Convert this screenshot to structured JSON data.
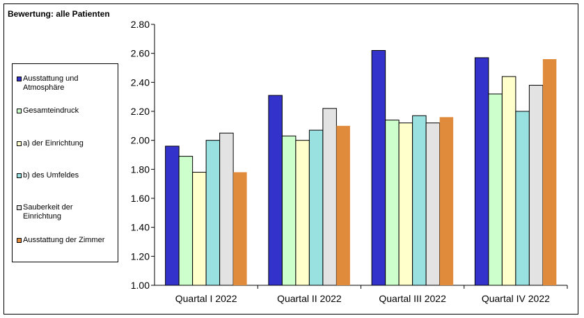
{
  "chart_data": {
    "type": "bar",
    "title": "Bewertung: alle Patienten",
    "xlabel": "",
    "ylabel": "",
    "ylim": [
      1.0,
      2.8
    ],
    "yticks": [
      "1.00",
      "1.20",
      "1.40",
      "1.60",
      "1.80",
      "2.00",
      "2.20",
      "2.40",
      "2.60",
      "2.80"
    ],
    "categories": [
      "Quartal I 2022",
      "Quartal II 2022",
      "Quartal III 2022",
      "Quartal IV 2022"
    ],
    "grid": false,
    "legend_position": "left",
    "series": [
      {
        "name": "Ausstattung und Atmosphäre",
        "color": "#3333CC",
        "values": [
          1.96,
          2.31,
          2.62,
          2.57
        ]
      },
      {
        "name": "Gesamteindruck",
        "color": "#CCFFCC",
        "values": [
          1.89,
          2.03,
          2.14,
          2.32
        ]
      },
      {
        "name": "a) der Einrichtung",
        "color": "#FFFFCC",
        "values": [
          1.78,
          2.0,
          2.12,
          2.44
        ]
      },
      {
        "name": "b) des Umfeldes",
        "color": "#99E0E0",
        "values": [
          2.0,
          2.07,
          2.17,
          2.2
        ]
      },
      {
        "name": "Sauberkeit der Einrichtung",
        "color": "#E3E3E3",
        "values": [
          2.05,
          2.22,
          2.12,
          2.38
        ]
      },
      {
        "name": "Ausstattung der Zimmer",
        "color": "#E08A3C",
        "values": [
          1.78,
          2.1,
          2.16,
          2.56
        ]
      }
    ]
  },
  "legend_items": [
    {
      "line1": "Ausstattung und",
      "line2": "Atmosphäre"
    },
    {
      "line1": "Gesamteindruck",
      "line2": ""
    },
    {
      "line1": "a) der Einrichtung",
      "line2": ""
    },
    {
      "line1": "b) des Umfeldes",
      "line2": ""
    },
    {
      "line1": "Sauberkeit der",
      "line2": "Einrichtung"
    },
    {
      "line1": "Ausstattung der Zimmer",
      "line2": ""
    }
  ]
}
